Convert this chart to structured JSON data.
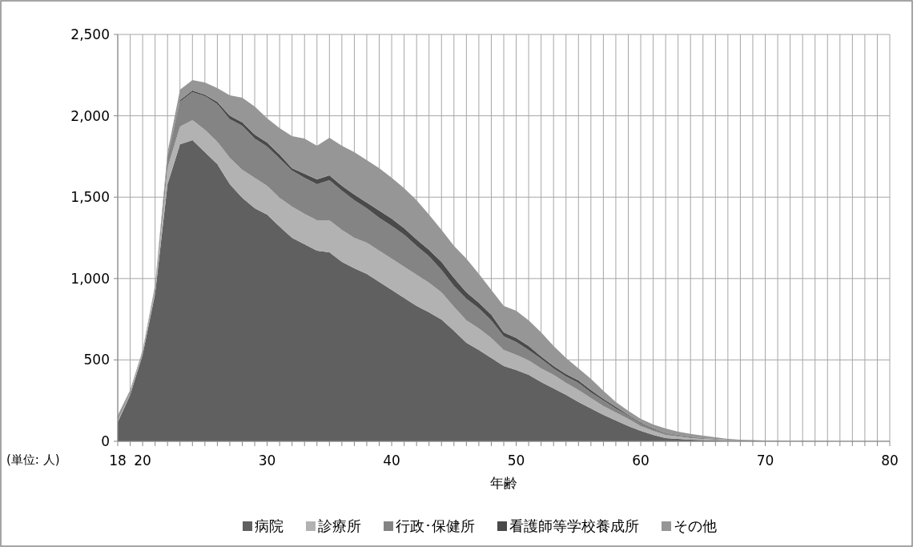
{
  "chart_data": {
    "type": "area",
    "stacked": true,
    "xlabel": "年齢",
    "annotations": [
      "(単位: 人)"
    ],
    "legend": "bottom",
    "grid": true,
    "x": [
      18,
      19,
      20,
      21,
      22,
      23,
      24,
      25,
      26,
      27,
      28,
      29,
      30,
      31,
      32,
      33,
      34,
      35,
      36,
      37,
      38,
      39,
      40,
      41,
      42,
      43,
      44,
      45,
      46,
      47,
      48,
      49,
      50,
      51,
      52,
      53,
      54,
      55,
      56,
      57,
      58,
      59,
      60,
      61,
      62,
      63,
      64,
      65,
      66,
      67,
      68,
      69,
      70,
      71,
      72,
      73,
      74,
      75,
      76,
      77,
      78,
      79,
      80
    ],
    "xlim": [
      18,
      80
    ],
    "xticks": [
      18,
      {
        "value": 19,
        "label": null
      },
      20,
      {
        "value": 21,
        "label": null
      },
      {
        "value": 22,
        "label": null
      },
      {
        "value": 23,
        "label": null
      },
      {
        "value": 24,
        "label": null
      },
      {
        "value": 25,
        "label": null
      },
      {
        "value": 26,
        "label": null
      },
      {
        "value": 27,
        "label": null
      },
      {
        "value": 28,
        "label": null
      },
      {
        "value": 29,
        "label": null
      },
      30,
      {
        "value": 31,
        "label": null
      },
      {
        "value": 32,
        "label": null
      },
      {
        "value": 33,
        "label": null
      },
      {
        "value": 34,
        "label": null
      },
      {
        "value": 35,
        "label": null
      },
      {
        "value": 36,
        "label": null
      },
      {
        "value": 37,
        "label": null
      },
      {
        "value": 38,
        "label": null
      },
      {
        "value": 39,
        "label": null
      },
      40,
      {
        "value": 41,
        "label": null
      },
      {
        "value": 42,
        "label": null
      },
      {
        "value": 43,
        "label": null
      },
      {
        "value": 44,
        "label": null
      },
      {
        "value": 45,
        "label": null
      },
      {
        "value": 46,
        "label": null
      },
      {
        "value": 47,
        "label": null
      },
      {
        "value": 48,
        "label": null
      },
      {
        "value": 49,
        "label": null
      },
      50,
      {
        "value": 51,
        "label": null
      },
      {
        "value": 52,
        "label": null
      },
      {
        "value": 53,
        "label": null
      },
      {
        "value": 54,
        "label": null
      },
      {
        "value": 55,
        "label": null
      },
      {
        "value": 56,
        "label": null
      },
      {
        "value": 57,
        "label": null
      },
      {
        "value": 58,
        "label": null
      },
      {
        "value": 59,
        "label": null
      },
      60,
      {
        "value": 61,
        "label": null
      },
      {
        "value": 62,
        "label": null
      },
      {
        "value": 63,
        "label": null
      },
      {
        "value": 64,
        "label": null
      },
      {
        "value": 65,
        "label": null
      },
      {
        "value": 66,
        "label": null
      },
      {
        "value": 67,
        "label": null
      },
      {
        "value": 68,
        "label": null
      },
      {
        "value": 69,
        "label": null
      },
      70,
      {
        "value": 71,
        "label": null
      },
      {
        "value": 72,
        "label": null
      },
      {
        "value": 73,
        "label": null
      },
      {
        "value": 74,
        "label": null
      },
      {
        "value": 75,
        "label": null
      },
      {
        "value": 76,
        "label": null
      },
      {
        "value": 77,
        "label": null
      },
      {
        "value": 78,
        "label": null
      },
      {
        "value": 79,
        "label": null
      },
      80
    ],
    "ylim": [
      0,
      2500
    ],
    "yticks": [
      {
        "value": 0,
        "label": "0"
      },
      {
        "value": 500,
        "label": "500"
      },
      {
        "value": 1000,
        "label": "1,000"
      },
      {
        "value": 1500,
        "label": "1,500"
      },
      {
        "value": 2000,
        "label": "2,000"
      },
      {
        "value": 2500,
        "label": "2,500"
      }
    ],
    "series": [
      {
        "name": "病院",
        "color": "#606060",
        "values": [
          118,
          285,
          531,
          905,
          1580,
          1825,
          1850,
          1777,
          1703,
          1580,
          1496,
          1432,
          1393,
          1319,
          1250,
          1211,
          1171,
          1161,
          1102,
          1063,
          1029,
          979,
          930,
          881,
          832,
          792,
          748,
          679,
          605,
          561,
          512,
          463,
          438,
          408,
          364,
          325,
          285,
          241,
          202,
          162,
          128,
          94,
          64,
          39,
          20,
          15,
          10,
          7,
          5,
          3,
          2,
          1,
          1,
          1,
          0,
          0,
          0,
          0,
          0,
          0,
          0,
          0,
          0
        ]
      },
      {
        "name": "診療所",
        "color": "#b2b2b2",
        "values": [
          12,
          7,
          9,
          20,
          100,
          109,
          123,
          137,
          137,
          162,
          172,
          187,
          177,
          177,
          192,
          187,
          187,
          197,
          197,
          187,
          191,
          192,
          192,
          192,
          192,
          182,
          167,
          148,
          138,
          133,
          123,
          98,
          93,
          89,
          84,
          83,
          74,
          74,
          64,
          55,
          49,
          44,
          30,
          25,
          19,
          15,
          10,
          7,
          5,
          3,
          2,
          2,
          1,
          0,
          1,
          0,
          0,
          0,
          0,
          0,
          0,
          0,
          0
        ]
      },
      {
        "name": "行政･保健所",
        "color": "#848484",
        "values": [
          15,
          8,
          8,
          15,
          60,
          153,
          173,
          207,
          232,
          238,
          271,
          241,
          241,
          241,
          221,
          221,
          222,
          246,
          241,
          231,
          212,
          202,
          202,
          197,
          177,
          163,
          138,
          128,
          133,
          123,
          108,
          84,
          79,
          64,
          59,
          40,
          40,
          44,
          34,
          34,
          25,
          19,
          16,
          10,
          10,
          7,
          6,
          5,
          4,
          3,
          2,
          1,
          1,
          1,
          0,
          1,
          0,
          0,
          0,
          0,
          0,
          0,
          0
        ]
      },
      {
        "name": "看護師等学校養成所",
        "color": "#4a4a4a",
        "values": [
          3,
          2,
          2,
          5,
          10,
          9,
          9,
          9,
          13,
          20,
          21,
          25,
          25,
          25,
          15,
          25,
          29,
          30,
          30,
          35,
          35,
          44,
          44,
          39,
          39,
          39,
          49,
          49,
          39,
          34,
          35,
          24,
          25,
          25,
          15,
          15,
          14,
          15,
          15,
          10,
          10,
          5,
          5,
          5,
          3,
          2,
          2,
          1,
          1,
          1,
          1,
          1,
          0,
          0,
          0,
          0,
          0,
          0,
          0,
          0,
          0,
          0,
          0
        ]
      },
      {
        "name": "その他",
        "color": "#969696",
        "values": [
          12,
          13,
          10,
          15,
          25,
          64,
          65,
          75,
          85,
          126,
          151,
          172,
          149,
          162,
          197,
          216,
          207,
          231,
          246,
          261,
          260,
          261,
          251,
          246,
          241,
          217,
          197,
          197,
          207,
          178,
          152,
          163,
          167,
          157,
          147,
          123,
          99,
          74,
          69,
          49,
          29,
          25,
          23,
          24,
          27,
          20,
          17,
          15,
          10,
          5,
          3,
          2,
          2,
          2,
          2,
          1,
          1,
          1,
          0,
          0,
          0,
          0,
          0
        ]
      }
    ]
  }
}
